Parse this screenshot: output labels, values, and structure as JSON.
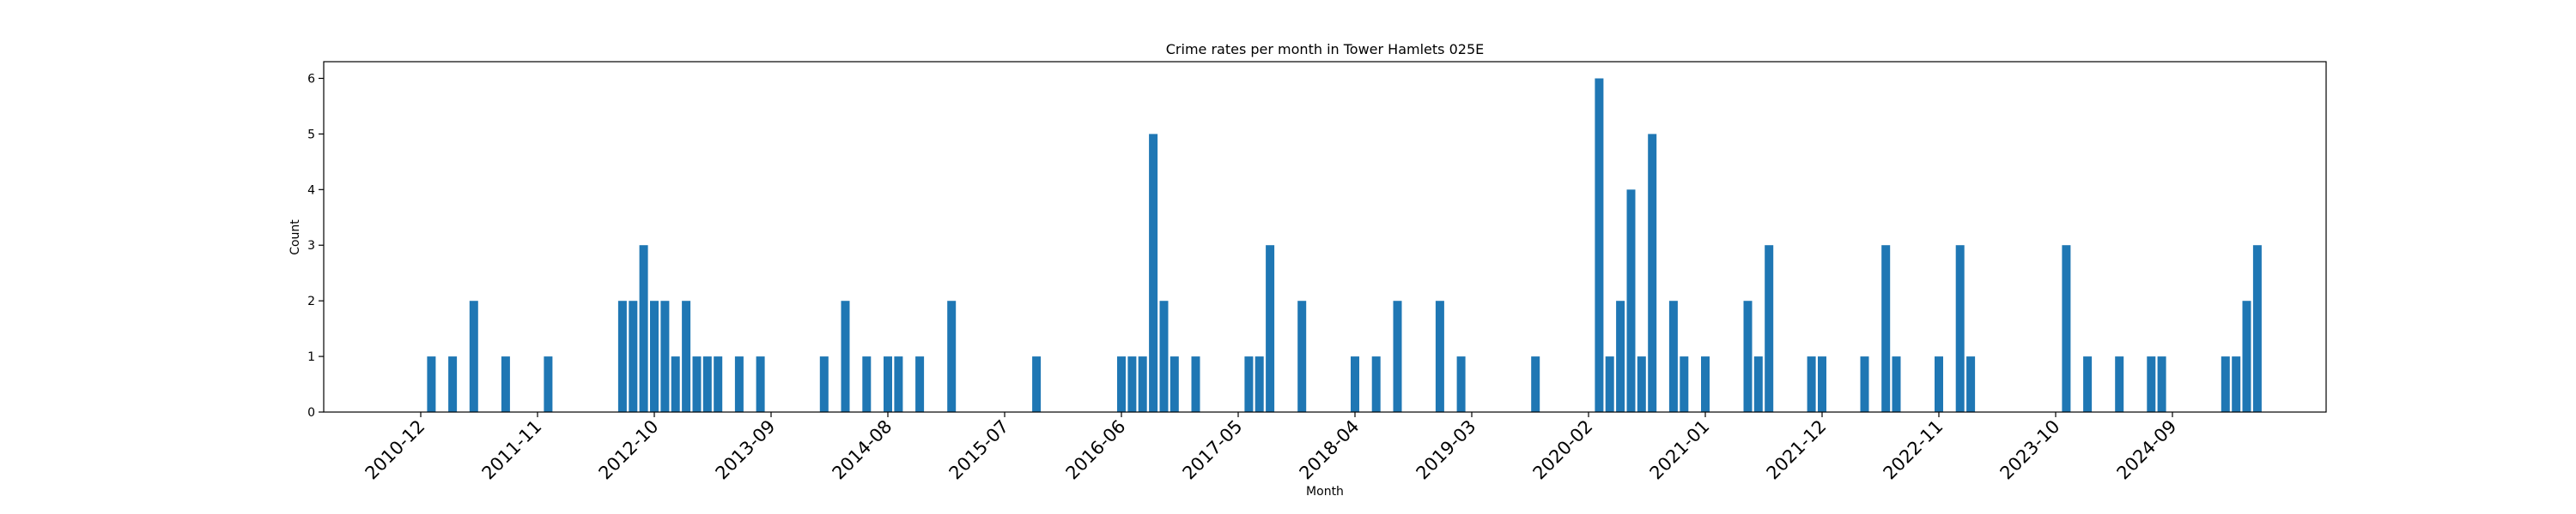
{
  "chart_data": {
    "type": "bar",
    "title": "Crime rates per month in Tower Hamlets 025E",
    "xlabel": "Month",
    "ylabel": "Count",
    "ylim": [
      0,
      6.3
    ],
    "yticks": [
      0,
      1,
      2,
      3,
      4,
      5,
      6
    ],
    "xticks": [
      "2010-12",
      "2011-11",
      "2012-10",
      "2013-09",
      "2014-08",
      "2015-07",
      "2016-06",
      "2017-05",
      "2018-04",
      "2019-03",
      "2020-02",
      "2021-01",
      "2021-12",
      "2022-11",
      "2023-10",
      "2024-09"
    ],
    "grid": false,
    "color": "#1f77b4",
    "x": [
      "2011-01",
      "2011-03",
      "2011-05",
      "2011-08",
      "2011-12",
      "2012-07",
      "2012-08",
      "2012-09",
      "2012-10",
      "2012-11",
      "2012-12",
      "2013-01",
      "2013-02",
      "2013-03",
      "2013-04",
      "2013-06",
      "2013-08",
      "2014-02",
      "2014-04",
      "2014-06",
      "2014-08",
      "2014-09",
      "2014-11",
      "2015-02",
      "2015-10",
      "2016-06",
      "2016-07",
      "2016-08",
      "2016-09",
      "2016-10",
      "2016-11",
      "2017-01",
      "2017-06",
      "2017-07",
      "2017-08",
      "2017-11",
      "2018-04",
      "2018-06",
      "2018-08",
      "2018-12",
      "2019-02",
      "2019-09",
      "2020-03",
      "2020-04",
      "2020-05",
      "2020-06",
      "2020-07",
      "2020-08",
      "2020-10",
      "2020-11",
      "2021-01",
      "2021-05",
      "2021-06",
      "2021-07",
      "2021-11",
      "2021-12",
      "2022-04",
      "2022-06",
      "2022-07",
      "2022-11",
      "2023-01",
      "2023-02",
      "2023-11",
      "2024-01",
      "2024-04",
      "2024-07",
      "2024-08",
      "2025-02",
      "2025-03",
      "2025-04",
      "2025-05"
    ],
    "values": [
      1,
      1,
      2,
      1,
      1,
      2,
      2,
      3,
      2,
      2,
      1,
      2,
      1,
      1,
      1,
      1,
      1,
      1,
      2,
      1,
      1,
      1,
      1,
      2,
      1,
      1,
      1,
      1,
      5,
      2,
      1,
      1,
      1,
      1,
      3,
      2,
      1,
      1,
      2,
      2,
      1,
      1,
      6,
      1,
      2,
      4,
      1,
      5,
      2,
      1,
      1,
      2,
      1,
      3,
      1,
      1,
      1,
      3,
      1,
      1,
      3,
      1,
      3,
      1,
      1,
      1,
      1,
      1,
      1,
      2,
      3
    ]
  }
}
